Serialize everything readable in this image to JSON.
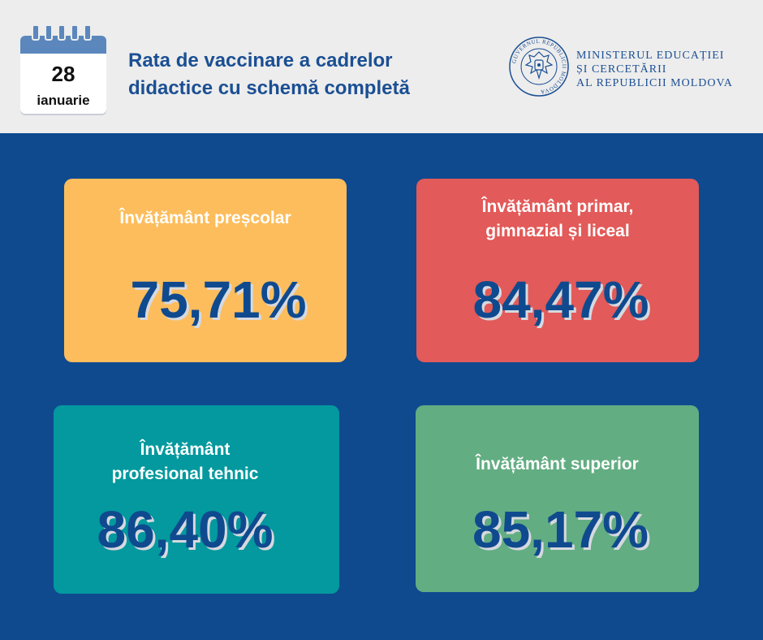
{
  "date": {
    "day": "28",
    "month": "ianuarie"
  },
  "title": {
    "line1": "Rata de vaccinare a cadrelor",
    "line2": "didactice cu schemă completă"
  },
  "ministry": {
    "line1": "MINISTERUL EDUCAȚIEI",
    "line2": "ȘI CERCETĂRII",
    "line3": "AL REPUBLICII MOLDOVA",
    "seal_text": "GUVERNUL REPUBLICII MOLDOVA"
  },
  "cards": [
    {
      "label_line1": "Învățământ preșcolar",
      "label_line2": "",
      "value": "75,71%",
      "color": "#fdbd5c"
    },
    {
      "label_line1": "Învățământ primar,",
      "label_line2": "gimnazial și liceal",
      "value": "84,47%",
      "color": "#e25a59"
    },
    {
      "label_line1": "Învățământ",
      "label_line2": "profesional tehnic",
      "value": "86,40%",
      "color": "#03999e"
    },
    {
      "label_line1": "Învățământ superior",
      "label_line2": "",
      "value": "85,17%",
      "color": "#62ad82"
    }
  ]
}
